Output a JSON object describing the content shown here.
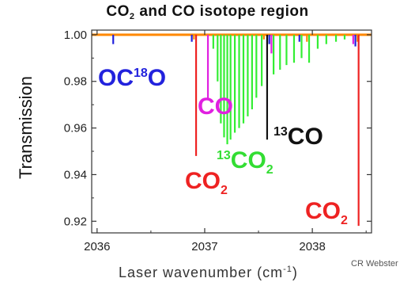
{
  "chart_data": {
    "type": "line",
    "title_parts": [
      "CO",
      "2",
      " and CO isotope region"
    ],
    "ylabel": "Transmission",
    "xlabel_parts": [
      "Laser wavenumber (cm",
      "-1",
      ")"
    ],
    "credit": "CR Webster",
    "xlim": [
      2035.95,
      2038.55
    ],
    "ylim": [
      0.915,
      1.002
    ],
    "xticks": [
      2036,
      2037,
      2038
    ],
    "yticks": [
      0.92,
      0.94,
      0.96,
      0.98,
      1.0
    ],
    "ytick_labels": [
      "0.92",
      "0.94",
      "0.96",
      "0.98",
      "1.00"
    ],
    "grid": false,
    "annotations": [
      {
        "id": "oc18o",
        "pre": "OC",
        "sup": "18",
        "post": "O",
        "sub": "",
        "color": "#2222dd"
      },
      {
        "id": "co-magenta",
        "pre": "CO",
        "sup": "",
        "post": "",
        "sub": "",
        "color": "#e020e0"
      },
      {
        "id": "13co",
        "pre": "",
        "sup": "13",
        "post": "CO",
        "sub": "",
        "color": "#111111"
      },
      {
        "id": "13co2",
        "pre": "",
        "sup": "13",
        "post": "CO",
        "sub": "2",
        "color": "#33dd33"
      },
      {
        "id": "co2-left",
        "pre": "CO",
        "sup": "",
        "post": "",
        "sub": "2",
        "color": "#ee2222"
      },
      {
        "id": "co2-right",
        "pre": "CO",
        "sup": "",
        "post": "",
        "sub": "2",
        "color": "#ee2222"
      }
    ],
    "series": [
      {
        "color": "#ff8800",
        "lines": [
          {
            "x": 2036.9,
            "depth": 0.002
          },
          {
            "x": 2037.55,
            "depth": 0.002
          },
          {
            "x": 2037.95,
            "depth": 0.003
          },
          {
            "x": 2038.42,
            "depth": 0.003
          }
        ]
      },
      {
        "color": "#ee2222",
        "lines": [
          {
            "x": 2036.92,
            "depth": 0.052
          },
          {
            "x": 2038.43,
            "depth": 0.082
          }
        ]
      },
      {
        "color": "#111111",
        "lines": [
          {
            "x": 2037.58,
            "depth": 0.045
          }
        ]
      },
      {
        "color": "#e020e0",
        "lines": [
          {
            "x": 2037.03,
            "depth": 0.028
          },
          {
            "x": 2037.62,
            "depth": 0.008
          },
          {
            "x": 2038.38,
            "depth": 0.004
          }
        ]
      },
      {
        "color": "#2222dd",
        "lines": [
          {
            "x": 2036.15,
            "depth": 0.004
          },
          {
            "x": 2036.88,
            "depth": 0.003
          },
          {
            "x": 2037.6,
            "depth": 0.004
          },
          {
            "x": 2037.88,
            "depth": 0.003
          },
          {
            "x": 2038.4,
            "depth": 0.005
          }
        ]
      },
      {
        "color": "#33ee33",
        "lines": [
          {
            "x": 2037.08,
            "depth": 0.006
          },
          {
            "x": 2037.12,
            "depth": 0.02
          },
          {
            "x": 2037.15,
            "depth": 0.038
          },
          {
            "x": 2037.18,
            "depth": 0.044
          },
          {
            "x": 2037.21,
            "depth": 0.047
          },
          {
            "x": 2037.24,
            "depth": 0.045
          },
          {
            "x": 2037.28,
            "depth": 0.042
          },
          {
            "x": 2037.32,
            "depth": 0.04
          },
          {
            "x": 2037.36,
            "depth": 0.038
          },
          {
            "x": 2037.4,
            "depth": 0.035
          },
          {
            "x": 2037.44,
            "depth": 0.032
          },
          {
            "x": 2037.48,
            "depth": 0.027
          },
          {
            "x": 2037.53,
            "depth": 0.022
          },
          {
            "x": 2037.64,
            "depth": 0.017
          },
          {
            "x": 2037.7,
            "depth": 0.015
          },
          {
            "x": 2037.76,
            "depth": 0.013
          },
          {
            "x": 2037.83,
            "depth": 0.012
          },
          {
            "x": 2037.9,
            "depth": 0.01
          },
          {
            "x": 2037.97,
            "depth": 0.012
          },
          {
            "x": 2038.05,
            "depth": 0.006
          },
          {
            "x": 2038.13,
            "depth": 0.004
          },
          {
            "x": 2038.22,
            "depth": 0.003
          },
          {
            "x": 2038.3,
            "depth": 0.002
          }
        ]
      }
    ]
  }
}
